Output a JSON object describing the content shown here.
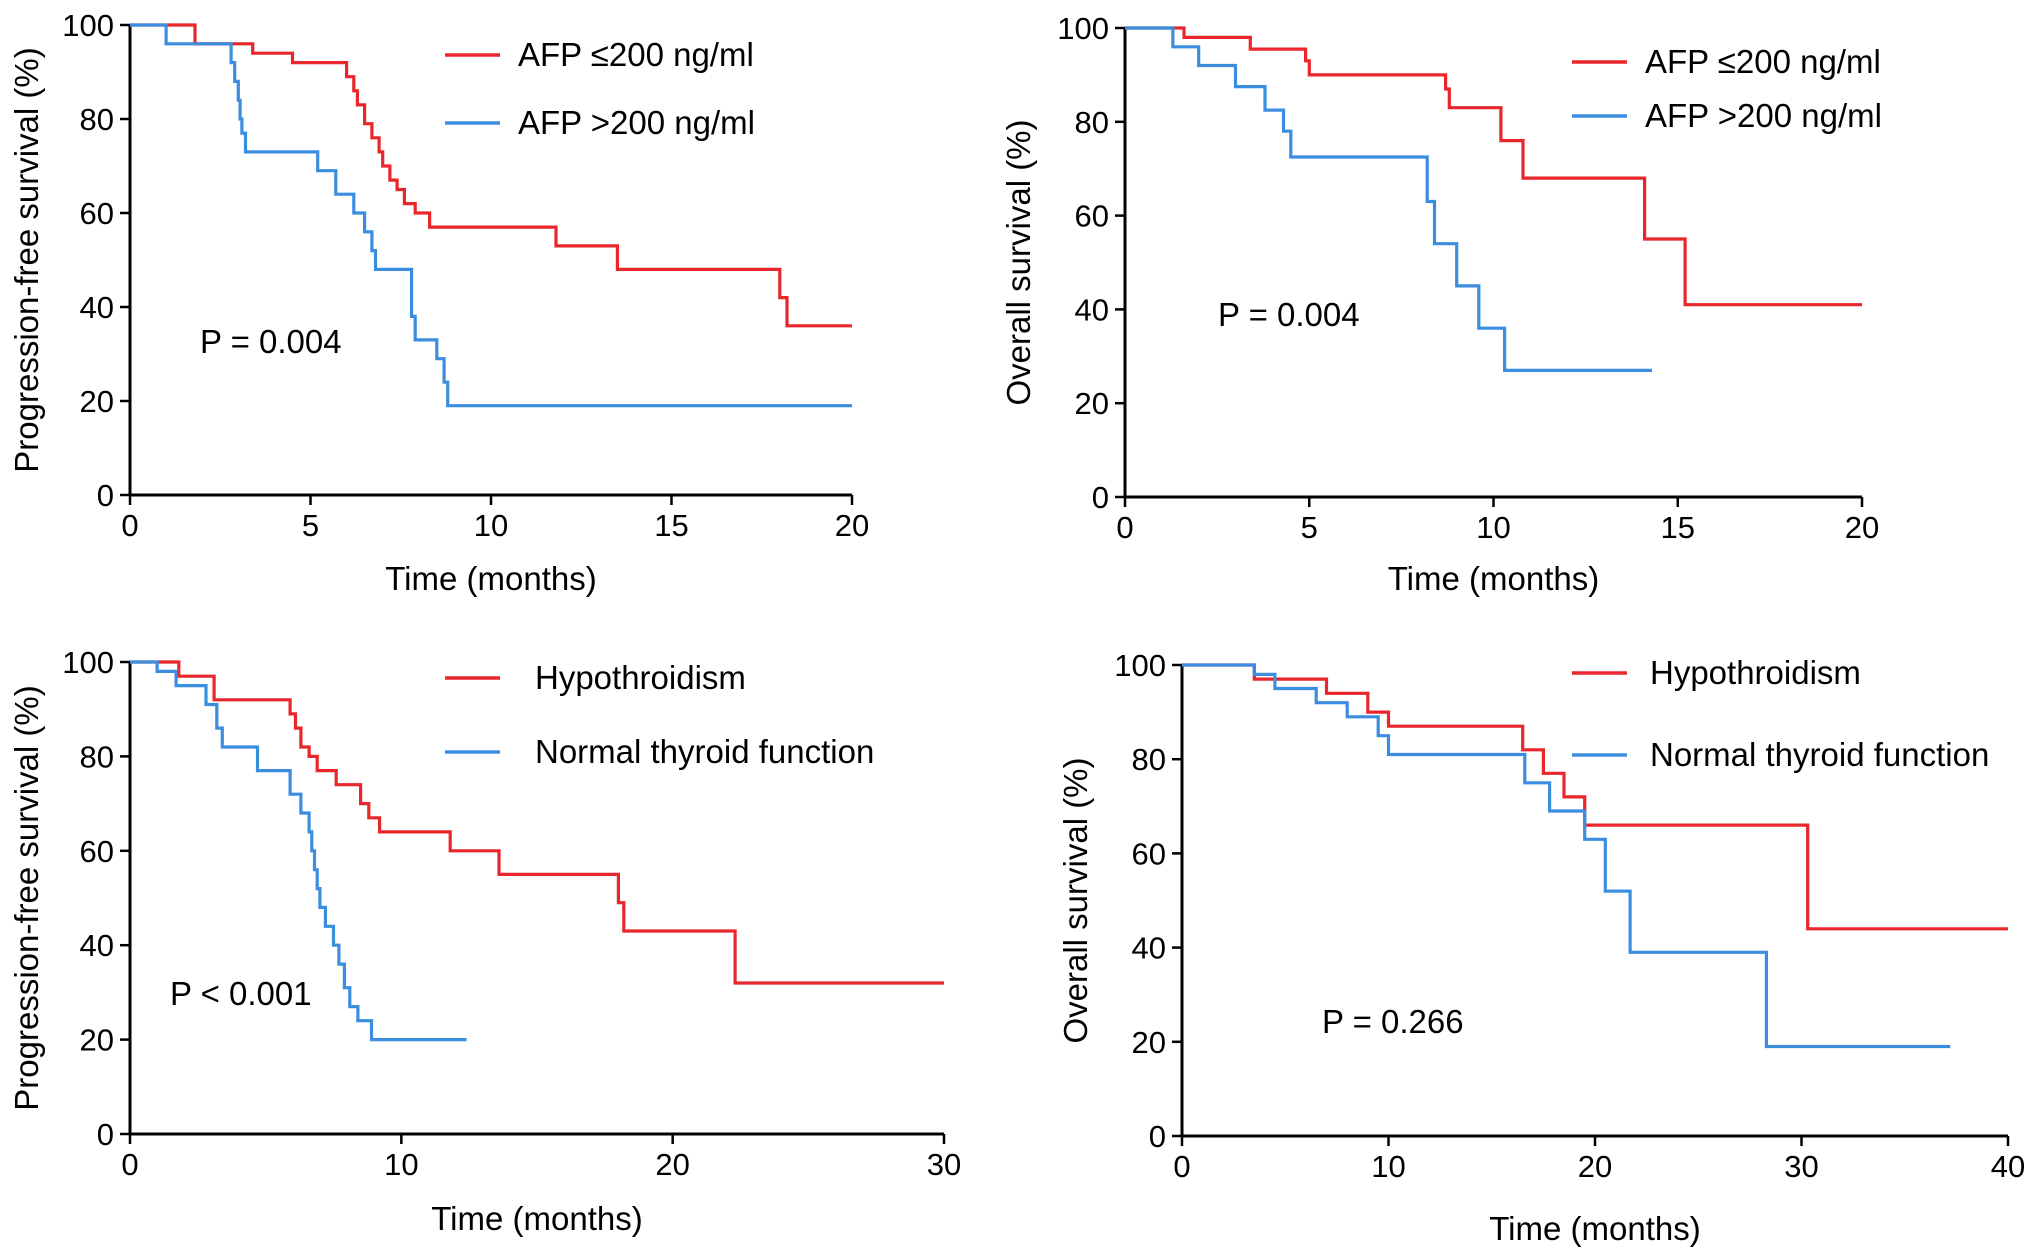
{
  "colors": {
    "red": "#e8262b",
    "blue": "#3b8de0",
    "axis": "#000000"
  },
  "chart_data": [
    {
      "type": "line",
      "step": true,
      "xlabel": "Time (months)",
      "ylabel": "Progression-free survival (%)",
      "xlim": [
        0,
        20
      ],
      "ylim": [
        0,
        100
      ],
      "xticks": [
        0,
        5,
        10,
        15,
        20
      ],
      "yticks": [
        0,
        20,
        40,
        60,
        80,
        100
      ],
      "annotation": "P = 0.004",
      "legend_position": "top-right",
      "series": [
        {
          "name": "AFP ≤200 ng/ml",
          "color": "red",
          "points": [
            [
              0,
              100
            ],
            [
              1.8,
              100
            ],
            [
              1.8,
              96
            ],
            [
              3.4,
              96
            ],
            [
              3.4,
              94
            ],
            [
              4.5,
              94
            ],
            [
              4.5,
              92
            ],
            [
              6,
              92
            ],
            [
              6,
              89
            ],
            [
              6.2,
              89
            ],
            [
              6.2,
              86
            ],
            [
              6.3,
              86
            ],
            [
              6.3,
              83
            ],
            [
              6.5,
              83
            ],
            [
              6.5,
              79
            ],
            [
              6.7,
              79
            ],
            [
              6.7,
              76
            ],
            [
              6.9,
              76
            ],
            [
              6.9,
              73
            ],
            [
              7,
              73
            ],
            [
              7,
              70
            ],
            [
              7.2,
              70
            ],
            [
              7.2,
              67
            ],
            [
              7.4,
              67
            ],
            [
              7.4,
              65
            ],
            [
              7.6,
              65
            ],
            [
              7.6,
              62
            ],
            [
              7.9,
              62
            ],
            [
              7.9,
              60
            ],
            [
              8.3,
              60
            ],
            [
              8.3,
              57
            ],
            [
              11.8,
              57
            ],
            [
              11.8,
              53
            ],
            [
              13.5,
              53
            ],
            [
              13.5,
              48
            ],
            [
              18,
              48
            ],
            [
              18,
              42
            ],
            [
              18.2,
              42
            ],
            [
              18.2,
              36
            ],
            [
              20,
              36
            ]
          ]
        },
        {
          "name": "AFP >200 ng/ml",
          "color": "blue",
          "points": [
            [
              0,
              100
            ],
            [
              1,
              100
            ],
            [
              1,
              96
            ],
            [
              2.8,
              96
            ],
            [
              2.8,
              92
            ],
            [
              2.9,
              92
            ],
            [
              2.9,
              88
            ],
            [
              3,
              88
            ],
            [
              3,
              84
            ],
            [
              3.05,
              84
            ],
            [
              3.05,
              80
            ],
            [
              3.1,
              80
            ],
            [
              3.1,
              77
            ],
            [
              3.2,
              77
            ],
            [
              3.2,
              73
            ],
            [
              5.2,
              73
            ],
            [
              5.2,
              69
            ],
            [
              5.7,
              69
            ],
            [
              5.7,
              64
            ],
            [
              6.2,
              64
            ],
            [
              6.2,
              60
            ],
            [
              6.5,
              60
            ],
            [
              6.5,
              56
            ],
            [
              6.7,
              56
            ],
            [
              6.7,
              52
            ],
            [
              6.8,
              52
            ],
            [
              6.8,
              48
            ],
            [
              7.8,
              48
            ],
            [
              7.8,
              38
            ],
            [
              7.9,
              38
            ],
            [
              7.9,
              33
            ],
            [
              8.5,
              33
            ],
            [
              8.5,
              29
            ],
            [
              8.7,
              29
            ],
            [
              8.7,
              24
            ],
            [
              8.8,
              24
            ],
            [
              8.8,
              19
            ],
            [
              20,
              19
            ]
          ]
        }
      ]
    },
    {
      "type": "line",
      "step": true,
      "xlabel": "Time (months)",
      "ylabel": "Overall survival (%)",
      "xlim": [
        0,
        20
      ],
      "ylim": [
        0,
        100
      ],
      "xticks": [
        0,
        5,
        10,
        15,
        20
      ],
      "yticks": [
        0,
        20,
        40,
        60,
        80,
        100
      ],
      "annotation": "P = 0.004",
      "legend_position": "top-right",
      "series": [
        {
          "name": "AFP ≤200 ng/ml",
          "color": "red",
          "points": [
            [
              0,
              100
            ],
            [
              1.6,
              100
            ],
            [
              1.6,
              98
            ],
            [
              3.4,
              98
            ],
            [
              3.4,
              95.5
            ],
            [
              4.9,
              95.5
            ],
            [
              4.9,
              93
            ],
            [
              5,
              93
            ],
            [
              5,
              90
            ],
            [
              8.7,
              90
            ],
            [
              8.7,
              87
            ],
            [
              8.8,
              87
            ],
            [
              8.8,
              83
            ],
            [
              10.2,
              83
            ],
            [
              10.2,
              76
            ],
            [
              10.8,
              76
            ],
            [
              10.8,
              68
            ],
            [
              14.1,
              68
            ],
            [
              14.1,
              55
            ],
            [
              15.2,
              55
            ],
            [
              15.2,
              41
            ],
            [
              20,
              41
            ]
          ]
        },
        {
          "name": "AFP >200 ng/ml",
          "color": "blue",
          "points": [
            [
              0,
              100
            ],
            [
              1.3,
              100
            ],
            [
              1.3,
              96
            ],
            [
              2,
              96
            ],
            [
              2,
              92
            ],
            [
              3,
              92
            ],
            [
              3,
              87.5
            ],
            [
              3.8,
              87.5
            ],
            [
              3.8,
              82.5
            ],
            [
              4.3,
              82.5
            ],
            [
              4.3,
              78
            ],
            [
              4.5,
              78
            ],
            [
              4.5,
              72.5
            ],
            [
              8.2,
              72.5
            ],
            [
              8.2,
              63
            ],
            [
              8.4,
              63
            ],
            [
              8.4,
              54
            ],
            [
              9,
              54
            ],
            [
              9,
              45
            ],
            [
              9.6,
              45
            ],
            [
              9.6,
              36
            ],
            [
              10.3,
              36
            ],
            [
              10.3,
              27
            ],
            [
              14.3,
              27
            ]
          ]
        }
      ]
    },
    {
      "type": "line",
      "step": true,
      "xlabel": "Time (months)",
      "ylabel": "Progression-free survival (%)",
      "xlim": [
        0,
        30
      ],
      "ylim": [
        0,
        100
      ],
      "xticks": [
        0,
        10,
        20,
        30
      ],
      "yticks": [
        0,
        20,
        40,
        60,
        80,
        100
      ],
      "annotation": "P < 0.001",
      "legend_position": "top-right",
      "series": [
        {
          "name": "Hypothroidism",
          "color": "red",
          "points": [
            [
              0,
              100
            ],
            [
              1.8,
              100
            ],
            [
              1.8,
              97
            ],
            [
              3.1,
              97
            ],
            [
              3.1,
              92
            ],
            [
              5.9,
              92
            ],
            [
              5.9,
              89
            ],
            [
              6.1,
              89
            ],
            [
              6.1,
              86
            ],
            [
              6.3,
              86
            ],
            [
              6.3,
              82
            ],
            [
              6.6,
              82
            ],
            [
              6.6,
              80
            ],
            [
              6.9,
              80
            ],
            [
              6.9,
              77
            ],
            [
              7.6,
              77
            ],
            [
              7.6,
              74
            ],
            [
              8.5,
              74
            ],
            [
              8.5,
              70
            ],
            [
              8.8,
              70
            ],
            [
              8.8,
              67
            ],
            [
              9.2,
              67
            ],
            [
              9.2,
              64
            ],
            [
              11.8,
              64
            ],
            [
              11.8,
              60
            ],
            [
              13.6,
              60
            ],
            [
              13.6,
              55
            ],
            [
              18,
              55
            ],
            [
              18,
              49
            ],
            [
              18.2,
              49
            ],
            [
              18.2,
              43
            ],
            [
              22.3,
              43
            ],
            [
              22.3,
              32
            ],
            [
              30,
              32
            ]
          ]
        },
        {
          "name": "Normal thyroid function",
          "color": "blue",
          "points": [
            [
              0,
              100
            ],
            [
              1,
              100
            ],
            [
              1,
              98
            ],
            [
              1.7,
              98
            ],
            [
              1.7,
              95
            ],
            [
              2.8,
              95
            ],
            [
              2.8,
              91
            ],
            [
              3.2,
              91
            ],
            [
              3.2,
              86
            ],
            [
              3.4,
              86
            ],
            [
              3.4,
              82
            ],
            [
              4.7,
              82
            ],
            [
              4.7,
              77
            ],
            [
              5.9,
              77
            ],
            [
              5.9,
              72
            ],
            [
              6.3,
              72
            ],
            [
              6.3,
              68
            ],
            [
              6.6,
              68
            ],
            [
              6.6,
              64
            ],
            [
              6.7,
              64
            ],
            [
              6.7,
              60
            ],
            [
              6.8,
              60
            ],
            [
              6.8,
              56
            ],
            [
              6.9,
              56
            ],
            [
              6.9,
              52
            ],
            [
              7,
              52
            ],
            [
              7,
              48
            ],
            [
              7.2,
              48
            ],
            [
              7.2,
              44
            ],
            [
              7.5,
              44
            ],
            [
              7.5,
              40
            ],
            [
              7.7,
              40
            ],
            [
              7.7,
              36
            ],
            [
              7.9,
              36
            ],
            [
              7.9,
              31
            ],
            [
              8.1,
              31
            ],
            [
              8.1,
              27
            ],
            [
              8.4,
              27
            ],
            [
              8.4,
              24
            ],
            [
              8.9,
              24
            ],
            [
              8.9,
              20
            ],
            [
              12.4,
              20
            ]
          ]
        }
      ]
    },
    {
      "type": "line",
      "step": true,
      "xlabel": "Time (months)",
      "ylabel": "Overall survival (%)",
      "xlim": [
        0,
        40
      ],
      "ylim": [
        0,
        100
      ],
      "xticks": [
        0,
        10,
        20,
        30,
        40
      ],
      "yticks": [
        0,
        20,
        40,
        60,
        80,
        100
      ],
      "annotation": "P = 0.266",
      "legend_position": "top-right",
      "series": [
        {
          "name": "Hypothroidism",
          "color": "red",
          "points": [
            [
              0,
              100
            ],
            [
              3.5,
              100
            ],
            [
              3.5,
              97
            ],
            [
              7,
              97
            ],
            [
              7,
              94
            ],
            [
              9,
              94
            ],
            [
              9,
              90
            ],
            [
              10,
              90
            ],
            [
              10,
              87
            ],
            [
              16.5,
              87
            ],
            [
              16.5,
              82
            ],
            [
              17.5,
              82
            ],
            [
              17.5,
              77
            ],
            [
              18.5,
              77
            ],
            [
              18.5,
              72
            ],
            [
              19.5,
              72
            ],
            [
              19.5,
              66
            ],
            [
              30.3,
              66
            ],
            [
              30.3,
              44
            ],
            [
              40,
              44
            ]
          ]
        },
        {
          "name": "Normal thyroid function",
          "color": "blue",
          "points": [
            [
              0,
              100
            ],
            [
              3.5,
              100
            ],
            [
              3.5,
              98
            ],
            [
              4.5,
              98
            ],
            [
              4.5,
              95
            ],
            [
              6.5,
              95
            ],
            [
              6.5,
              92
            ],
            [
              8,
              92
            ],
            [
              8,
              89
            ],
            [
              9.5,
              89
            ],
            [
              9.5,
              85
            ],
            [
              10,
              85
            ],
            [
              10,
              81
            ],
            [
              16.6,
              81
            ],
            [
              16.6,
              75
            ],
            [
              17.8,
              75
            ],
            [
              17.8,
              69
            ],
            [
              19.5,
              69
            ],
            [
              19.5,
              63
            ],
            [
              20.5,
              63
            ],
            [
              20.5,
              52
            ],
            [
              21.7,
              52
            ],
            [
              21.7,
              39
            ],
            [
              28.3,
              39
            ],
            [
              28.3,
              19
            ],
            [
              37.2,
              19
            ]
          ]
        }
      ]
    }
  ]
}
